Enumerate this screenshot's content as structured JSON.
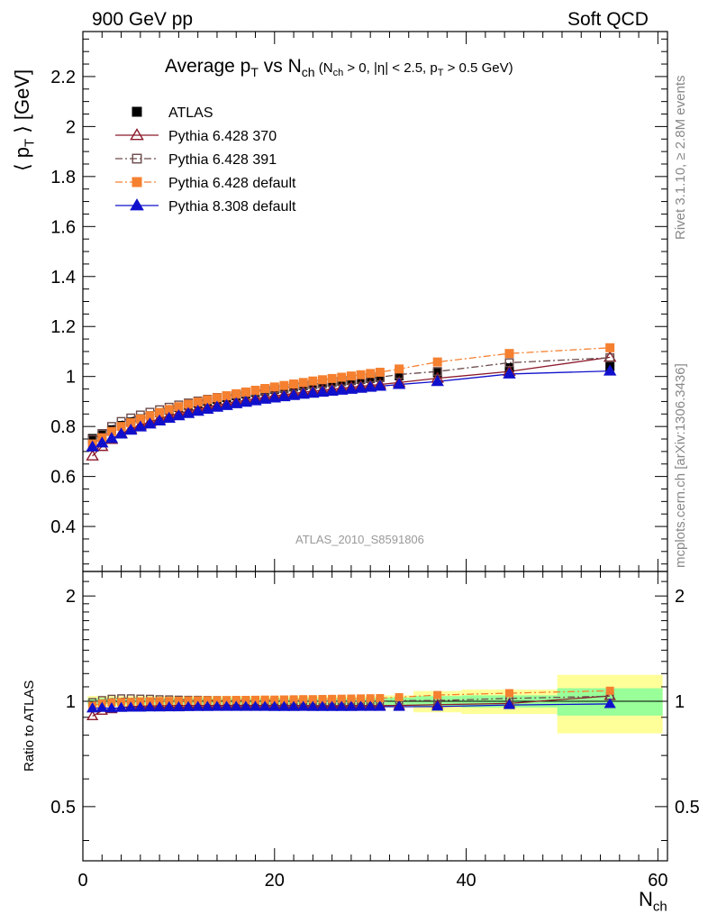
{
  "header": {
    "left": "900 GeV pp",
    "right": "Soft QCD"
  },
  "side_labels": {
    "rivet": "Rivet 3.1.10, ≥ 2.8M events",
    "mcplots": "mcplots.cern.ch [arXiv:1306.3436]"
  },
  "watermark": "ATLAS_2010_S8591806",
  "title_parts": {
    "main": "Average p",
    "main_sub": "T",
    "vs": " vs N",
    "vs_sub": "ch",
    "cond_open": " (N",
    "cond_sub1": "ch",
    "cond_mid": " > 0, |η| < 2.5, p",
    "cond_sub2": "T",
    "cond_close": " > 0.5 GeV)"
  },
  "axis_labels": {
    "y_main": "⟨ p_T ⟩ [GeV]",
    "y_ratio": "Ratio to ATLAS",
    "x": "N",
    "x_sub": "ch"
  },
  "chart_data": {
    "type": "scatter",
    "x_range": [
      0,
      61
    ],
    "main": {
      "ylim": [
        0.22,
        2.38
      ],
      "yticks": [
        0.4,
        0.6,
        0.8,
        1,
        1.2,
        1.4,
        1.6,
        1.8,
        2,
        2.2
      ],
      "ytick_labels": [
        "0.4",
        "0.6",
        "0.8",
        "1",
        "1.2",
        "1.4",
        "1.6",
        "1.8",
        "2",
        "2.2"
      ]
    },
    "ratio": {
      "ylim": [
        0.35,
        2.35
      ],
      "log": true,
      "yticks": [
        0.5,
        1,
        2
      ],
      "ytick_labels": [
        "0.5",
        "1",
        "2"
      ]
    },
    "xticks": [
      0,
      20,
      40,
      60
    ],
    "xtick_labels": [
      "0",
      "20",
      "40",
      "60"
    ],
    "x": [
      1,
      2,
      3,
      4,
      5,
      6,
      7,
      8,
      9,
      10,
      11,
      12,
      13,
      14,
      15,
      16,
      17,
      18,
      19,
      20,
      21,
      22,
      23,
      24,
      25,
      26,
      27,
      28,
      29,
      30,
      31,
      33,
      37,
      44.5,
      55
    ],
    "series": [
      {
        "name": "ATLAS",
        "color": "#000000",
        "marker": "square-filled",
        "line": "none",
        "values": [
          0.752,
          0.766,
          0.787,
          0.804,
          0.818,
          0.831,
          0.843,
          0.855,
          0.866,
          0.876,
          0.885,
          0.893,
          0.901,
          0.909,
          0.916,
          0.923,
          0.93,
          0.936,
          0.942,
          0.948,
          0.953,
          0.958,
          0.963,
          0.968,
          0.972,
          0.976,
          0.98,
          0.984,
          0.988,
          0.992,
          0.996,
          1.003,
          1.015,
          1.035,
          1.04
        ],
        "ratio_band_inner": [
          0.02,
          0.02,
          0.02,
          0.02,
          0.02,
          0.02,
          0.02,
          0.02,
          0.02,
          0.02,
          0.02,
          0.02,
          0.02,
          0.02,
          0.02,
          0.02,
          0.02,
          0.02,
          0.02,
          0.02,
          0.02,
          0.02,
          0.02,
          0.02,
          0.02,
          0.02,
          0.02,
          0.02,
          0.02,
          0.02,
          0.02,
          0.025,
          0.035,
          0.04,
          0.09
        ],
        "ratio_band_outer": [
          0.035,
          0.035,
          0.035,
          0.035,
          0.035,
          0.035,
          0.035,
          0.035,
          0.035,
          0.035,
          0.035,
          0.035,
          0.035,
          0.035,
          0.035,
          0.035,
          0.035,
          0.035,
          0.035,
          0.035,
          0.035,
          0.035,
          0.035,
          0.035,
          0.035,
          0.035,
          0.035,
          0.035,
          0.035,
          0.035,
          0.035,
          0.04,
          0.07,
          0.08,
          0.19
        ],
        "bin_edges": [
          0.5,
          1.5,
          2.5,
          3.5,
          4.5,
          5.5,
          6.5,
          7.5,
          8.5,
          9.5,
          10.5,
          11.5,
          12.5,
          13.5,
          14.5,
          15.5,
          16.5,
          17.5,
          18.5,
          19.5,
          20.5,
          21.5,
          22.5,
          23.5,
          24.5,
          25.5,
          26.5,
          27.5,
          28.5,
          29.5,
          30.5,
          31.5,
          34.5,
          39.5,
          49.5,
          60.5
        ]
      },
      {
        "name": "Pythia 6.428 370",
        "color": "#8b1a2a",
        "marker": "triangle-open",
        "line": "solid",
        "values": [
          0.682,
          0.72,
          0.748,
          0.772,
          0.79,
          0.805,
          0.818,
          0.831,
          0.842,
          0.852,
          0.861,
          0.87,
          0.878,
          0.885,
          0.892,
          0.899,
          0.905,
          0.911,
          0.917,
          0.922,
          0.927,
          0.932,
          0.937,
          0.941,
          0.945,
          0.949,
          0.953,
          0.957,
          0.961,
          0.964,
          0.968,
          0.976,
          0.993,
          1.02,
          1.077
        ],
        "ratio": [
          0.907,
          0.94,
          0.95,
          0.96,
          0.966,
          0.969,
          0.97,
          0.972,
          0.972,
          0.973,
          0.973,
          0.974,
          0.974,
          0.974,
          0.974,
          0.974,
          0.973,
          0.973,
          0.973,
          0.973,
          0.973,
          0.973,
          0.973,
          0.972,
          0.972,
          0.972,
          0.972,
          0.973,
          0.973,
          0.972,
          0.972,
          0.973,
          0.978,
          0.986,
          1.036
        ]
      },
      {
        "name": "Pythia 6.428 391",
        "color": "#6b4a4a",
        "marker": "square-open",
        "line": "dashdot",
        "values": [
          0.748,
          0.772,
          0.8,
          0.82,
          0.834,
          0.846,
          0.857,
          0.867,
          0.877,
          0.886,
          0.894,
          0.902,
          0.909,
          0.916,
          0.922,
          0.928,
          0.934,
          0.94,
          0.945,
          0.95,
          0.955,
          0.96,
          0.965,
          0.969,
          0.973,
          0.977,
          0.981,
          0.985,
          0.989,
          0.993,
          0.997,
          1.008,
          1.02,
          1.055,
          1.075
        ],
        "ratio": [
          0.995,
          1.008,
          1.017,
          1.02,
          1.02,
          1.018,
          1.017,
          1.014,
          1.013,
          1.011,
          1.01,
          1.01,
          1.009,
          1.008,
          1.007,
          1.005,
          1.004,
          1.004,
          1.003,
          1.002,
          1.002,
          1.002,
          1.002,
          1.001,
          1.001,
          1.001,
          1.001,
          1.001,
          1.001,
          1.001,
          1.001,
          1.005,
          1.005,
          1.019,
          1.034
        ]
      },
      {
        "name": "Pythia 6.428 default",
        "color": "#f58030",
        "marker": "square-filled",
        "line": "dashdot",
        "values": [
          0.73,
          0.755,
          0.78,
          0.8,
          0.815,
          0.83,
          0.843,
          0.856,
          0.868,
          0.879,
          0.889,
          0.898,
          0.907,
          0.915,
          0.923,
          0.931,
          0.938,
          0.945,
          0.952,
          0.958,
          0.964,
          0.97,
          0.976,
          0.982,
          0.987,
          0.992,
          0.997,
          1.002,
          1.007,
          1.012,
          1.017,
          1.03,
          1.058,
          1.092,
          1.115
        ],
        "ratio": [
          0.971,
          0.986,
          0.991,
          0.995,
          0.996,
          0.999,
          1.0,
          1.001,
          1.002,
          1.003,
          1.005,
          1.006,
          1.007,
          1.007,
          1.008,
          1.009,
          1.009,
          1.01,
          1.011,
          1.011,
          1.012,
          1.013,
          1.014,
          1.014,
          1.015,
          1.016,
          1.017,
          1.018,
          1.019,
          1.02,
          1.021,
          1.027,
          1.042,
          1.055,
          1.072
        ]
      },
      {
        "name": "Pythia 8.308 default",
        "color": "#1010cc",
        "marker": "triangle-filled",
        "line": "solid",
        "values": [
          0.718,
          0.734,
          0.752,
          0.77,
          0.785,
          0.798,
          0.81,
          0.822,
          0.833,
          0.843,
          0.852,
          0.861,
          0.869,
          0.877,
          0.884,
          0.891,
          0.897,
          0.903,
          0.909,
          0.914,
          0.919,
          0.924,
          0.929,
          0.933,
          0.937,
          0.941,
          0.945,
          0.949,
          0.953,
          0.957,
          0.961,
          0.968,
          0.98,
          1.01,
          1.022
        ],
        "ratio": [
          0.955,
          0.958,
          0.955,
          0.958,
          0.96,
          0.96,
          0.961,
          0.961,
          0.962,
          0.962,
          0.963,
          0.964,
          0.964,
          0.965,
          0.965,
          0.965,
          0.965,
          0.965,
          0.965,
          0.964,
          0.964,
          0.964,
          0.965,
          0.964,
          0.964,
          0.964,
          0.964,
          0.964,
          0.965,
          0.965,
          0.965,
          0.965,
          0.966,
          0.976,
          0.983
        ]
      }
    ],
    "band_colors": {
      "inner": "#99ff99",
      "outer": "#ffff99"
    }
  }
}
